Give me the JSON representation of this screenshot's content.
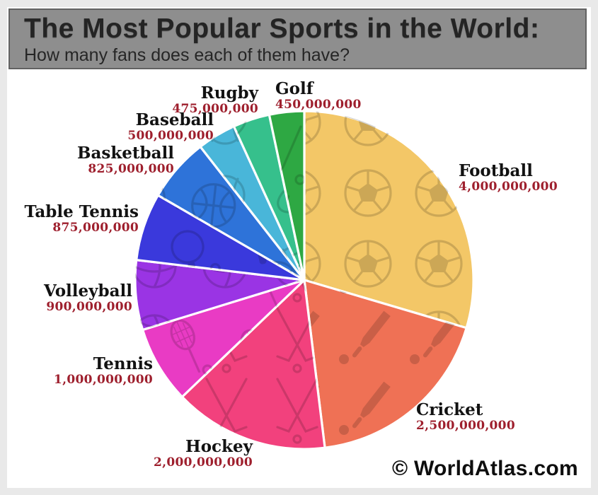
{
  "header": {
    "title": "The Most Popular Sports in the World:",
    "subtitle": "How many fans does each of them have?",
    "bar_color": "#8e8e8e",
    "text_color": "#242424"
  },
  "attribution": {
    "text": "© WorldAtlas.com"
  },
  "chart_data": {
    "type": "pie",
    "title": "The Most Popular Sports in the World:",
    "subtitle": "How many fans does each of them have?",
    "unit": "fans",
    "start_at": "12-oclock",
    "direction": "clockwise",
    "label_text_color": "#121212",
    "value_text_color": "#9E1F2D",
    "separator_color": "#ffffff",
    "categories": [
      "Football",
      "Cricket",
      "Hockey",
      "Tennis",
      "Volleyball",
      "Table Tennis",
      "Basketball",
      "Baseball",
      "Rugby",
      "Golf"
    ],
    "values": [
      4000000000,
      2500000000,
      2000000000,
      1000000000,
      900000000,
      875000000,
      825000000,
      500000000,
      475000000,
      450000000
    ],
    "slices": [
      {
        "id": "football",
        "label": "Football",
        "value": 4000000000,
        "value_label": "4,000,000,000",
        "color": "#F3C767",
        "icon": "soccer-ball"
      },
      {
        "id": "cricket",
        "label": "Cricket",
        "value": 2500000000,
        "value_label": "2,500,000,000",
        "color": "#EF7155",
        "icon": "cricket-bat"
      },
      {
        "id": "hockey",
        "label": "Hockey",
        "value": 2000000000,
        "value_label": "2,000,000,000",
        "color": "#F2417D",
        "icon": "hockey-sticks"
      },
      {
        "id": "tennis",
        "label": "Tennis",
        "value": 1000000000,
        "value_label": "1,000,000,000",
        "color": "#E93BC4",
        "icon": "tennis-racket"
      },
      {
        "id": "volleyball",
        "label": "Volleyball",
        "value": 900000000,
        "value_label": "900,000,000",
        "color": "#9A34E4",
        "icon": "volleyball"
      },
      {
        "id": "table-tennis",
        "label": "Table Tennis",
        "value": 875000000,
        "value_label": "875,000,000",
        "color": "#3A39DC",
        "icon": "table-tennis-paddle"
      },
      {
        "id": "basketball",
        "label": "Basketball",
        "value": 825000000,
        "value_label": "825,000,000",
        "color": "#2E73D9",
        "icon": "basketball"
      },
      {
        "id": "baseball",
        "label": "Baseball",
        "value": 500000000,
        "value_label": "500,000,000",
        "color": "#49B6D9",
        "icon": "baseball"
      },
      {
        "id": "rugby",
        "label": "Rugby",
        "value": 475000000,
        "value_label": "475,000,000",
        "color": "#36C08C",
        "icon": "rugby-ball"
      },
      {
        "id": "golf",
        "label": "Golf",
        "value": 450000000,
        "value_label": "450,000,000",
        "color": "#2EA843",
        "icon": "golf-club"
      }
    ]
  }
}
